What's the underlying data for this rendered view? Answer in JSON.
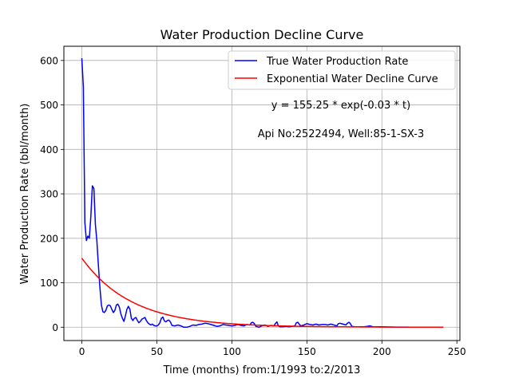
{
  "chart_data": {
    "type": "line",
    "title": "Water Production Decline Curve",
    "xlabel": "Time (months) from:1/1993 to:2/2013",
    "ylabel": "Water Production Rate (bbl/month)",
    "xlim": [
      -12,
      252
    ],
    "ylim": [
      -30,
      632
    ],
    "xticks": [
      0,
      50,
      100,
      150,
      200,
      250
    ],
    "yticks": [
      0,
      100,
      200,
      300,
      400,
      500,
      600
    ],
    "grid": true,
    "legend_position": "top-right",
    "annotations": [
      "y = 155.25 * exp(-0.03 * t)",
      "Api No:2522494, Well:85-1-SX-3"
    ],
    "series": [
      {
        "name": "True Water Production Rate",
        "color": "#0000ff",
        "points": [
          [
            0,
            605
          ],
          [
            1,
            540
          ],
          [
            2,
            235
          ],
          [
            3,
            195
          ],
          [
            4,
            205
          ],
          [
            5,
            200
          ],
          [
            6,
            250
          ],
          [
            7,
            318
          ],
          [
            8,
            312
          ],
          [
            9,
            230
          ],
          [
            10,
            195
          ],
          [
            11,
            140
          ],
          [
            12,
            90
          ],
          [
            13,
            50
          ],
          [
            14,
            35
          ],
          [
            15,
            33
          ],
          [
            16,
            38
          ],
          [
            17,
            48
          ],
          [
            18,
            50
          ],
          [
            19,
            48
          ],
          [
            20,
            40
          ],
          [
            21,
            33
          ],
          [
            22,
            38
          ],
          [
            23,
            50
          ],
          [
            24,
            52
          ],
          [
            25,
            45
          ],
          [
            26,
            30
          ],
          [
            27,
            20
          ],
          [
            28,
            13
          ],
          [
            29,
            25
          ],
          [
            30,
            40
          ],
          [
            31,
            47
          ],
          [
            32,
            40
          ],
          [
            33,
            20
          ],
          [
            34,
            15
          ],
          [
            35,
            20
          ],
          [
            36,
            22
          ],
          [
            37,
            15
          ],
          [
            38,
            10
          ],
          [
            39,
            13
          ],
          [
            40,
            18
          ],
          [
            41,
            20
          ],
          [
            42,
            22
          ],
          [
            43,
            15
          ],
          [
            44,
            10
          ],
          [
            45,
            7
          ],
          [
            46,
            5
          ],
          [
            47,
            7
          ],
          [
            48,
            4
          ],
          [
            49,
            3
          ],
          [
            50,
            3
          ],
          [
            51,
            5
          ],
          [
            52,
            10
          ],
          [
            53,
            20
          ],
          [
            54,
            23
          ],
          [
            55,
            14
          ],
          [
            56,
            12
          ],
          [
            57,
            15
          ],
          [
            58,
            16
          ],
          [
            59,
            12
          ],
          [
            60,
            4
          ],
          [
            62,
            3
          ],
          [
            64,
            5
          ],
          [
            66,
            3
          ],
          [
            68,
            0
          ],
          [
            70,
            0
          ],
          [
            72,
            2
          ],
          [
            74,
            5
          ],
          [
            76,
            4
          ],
          [
            78,
            6
          ],
          [
            80,
            7
          ],
          [
            82,
            9
          ],
          [
            84,
            8
          ],
          [
            86,
            6
          ],
          [
            88,
            4
          ],
          [
            90,
            2
          ],
          [
            92,
            3
          ],
          [
            94,
            6
          ],
          [
            96,
            5
          ],
          [
            98,
            4
          ],
          [
            100,
            3
          ],
          [
            102,
            4
          ],
          [
            104,
            6
          ],
          [
            106,
            4
          ],
          [
            108,
            3
          ],
          [
            110,
            6
          ],
          [
            112,
            5
          ],
          [
            113,
            10
          ],
          [
            114,
            11
          ],
          [
            115,
            8
          ],
          [
            116,
            2
          ],
          [
            118,
            0
          ],
          [
            120,
            3
          ],
          [
            122,
            5
          ],
          [
            124,
            2
          ],
          [
            126,
            4
          ],
          [
            128,
            3
          ],
          [
            129,
            8
          ],
          [
            130,
            12
          ],
          [
            131,
            3
          ],
          [
            132,
            1
          ],
          [
            134,
            1
          ],
          [
            136,
            2
          ],
          [
            138,
            1
          ],
          [
            140,
            2
          ],
          [
            142,
            3
          ],
          [
            143,
            10
          ],
          [
            144,
            11
          ],
          [
            145,
            6
          ],
          [
            146,
            3
          ],
          [
            148,
            5
          ],
          [
            150,
            8
          ],
          [
            152,
            6
          ],
          [
            154,
            5
          ],
          [
            156,
            7
          ],
          [
            158,
            5
          ],
          [
            160,
            6
          ],
          [
            162,
            6
          ],
          [
            164,
            5
          ],
          [
            166,
            7
          ],
          [
            168,
            5
          ],
          [
            170,
            3
          ],
          [
            171,
            8
          ],
          [
            172,
            9
          ],
          [
            174,
            7
          ],
          [
            176,
            5
          ],
          [
            177,
            9
          ],
          [
            178,
            11
          ],
          [
            179,
            8
          ],
          [
            180,
            2
          ],
          [
            182,
            1
          ],
          [
            184,
            1
          ],
          [
            186,
            1
          ],
          [
            188,
            1
          ],
          [
            190,
            2
          ],
          [
            192,
            3
          ],
          [
            194,
            1
          ],
          [
            196,
            1
          ],
          [
            200,
            1
          ],
          [
            210,
            0
          ],
          [
            220,
            0
          ],
          [
            230,
            0
          ],
          [
            240,
            0
          ]
        ]
      },
      {
        "name": "Exponential Water Decline Curve",
        "color": "#ff0000",
        "equation": {
          "a": 155.25,
          "b": -0.03,
          "x_start": 0,
          "x_end": 241
        }
      }
    ]
  }
}
